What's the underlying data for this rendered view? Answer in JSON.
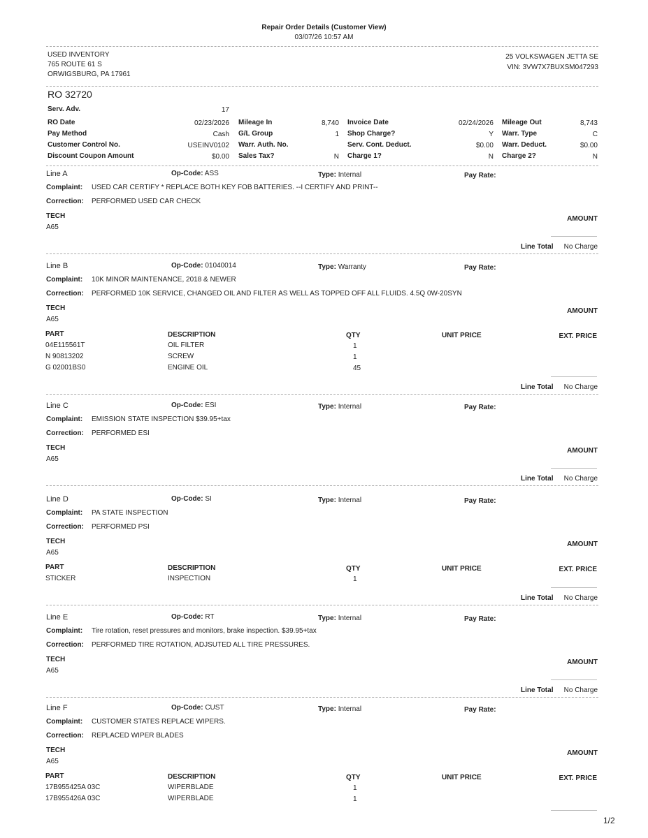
{
  "header": {
    "title": "Repair Order Details (Customer View)",
    "printed": "03/07/26 10:57 AM",
    "customer": [
      "USED INVENTORY",
      "765 ROUTE 61 S",
      "ORWIGSBURG, PA 17961"
    ],
    "vehicle": "25 VOLKSWAGEN JETTA SE",
    "vin": "VIN: 3VW7X7BUXSM047293",
    "ro_number": "RO 32720"
  },
  "fields": [
    [
      {
        "label": "Serv. Adv.",
        "value": "17"
      }
    ],
    [
      {
        "label": "RO Date",
        "value": "02/23/2026"
      },
      {
        "label": "Mileage In",
        "value": "8,740"
      },
      {
        "label": "Invoice Date",
        "value": "02/24/2026"
      },
      {
        "label": "Mileage Out",
        "value": "8,743"
      }
    ],
    [
      {
        "label": "Pay Method",
        "value": "Cash"
      },
      {
        "label": "G/L Group",
        "value": "1"
      },
      {
        "label": "Shop Charge?",
        "value": "Y"
      },
      {
        "label": "Warr. Type",
        "value": "C"
      }
    ],
    [
      {
        "label": "Customer Control No.",
        "value": "USEINV0102"
      },
      {
        "label": "Warr. Auth. No.",
        "value": ""
      },
      {
        "label": "Serv. Cont. Deduct.",
        "value": "$0.00"
      },
      {
        "label": "Warr. Deduct.",
        "value": "$0.00"
      }
    ],
    [
      {
        "label": "Discount Coupon Amount",
        "value": "$0.00"
      },
      {
        "label": "Sales Tax?",
        "value": "N"
      },
      {
        "label": "Charge 1?",
        "value": "N"
      },
      {
        "label": "Charge 2?",
        "value": "N"
      }
    ]
  ],
  "labels": {
    "opcode": "Op-Code:",
    "type": "Type:",
    "pay_rate": "Pay Rate:",
    "complaint": "Complaint:",
    "correction": "Correction:",
    "tech": "TECH",
    "amount": "AMOUNT",
    "line_total": "Line Total",
    "part": "PART",
    "description": "DESCRIPTION",
    "qty": "QTY",
    "unit_price": "UNIT PRICE",
    "ext_price": "EXT. PRICE"
  },
  "lines": [
    {
      "name": "Line A",
      "opcode": "ASS",
      "type": "Internal",
      "complaint": "USED CAR CERTIFY * REPLACE BOTH KEY FOB BATTERIES. --I CERTIFY AND PRINT--",
      "correction": "PERFORMED USED CAR CHECK",
      "tech": "A65",
      "parts": [],
      "total": "No Charge"
    },
    {
      "name": "Line B",
      "opcode": "01040014",
      "type": "Warranty",
      "complaint": "10K MINOR MAINTENANCE, 2018 & NEWER",
      "correction": "PERFORMED 10K SERVICE, CHANGED OIL AND FILTER AS WELL AS TOPPED OFF ALL FLUIDS. 4.5Q 0W-20SYN",
      "tech": "A65",
      "parts": [
        {
          "part": "04E115561T",
          "description": "OIL FILTER",
          "qty": "1"
        },
        {
          "part": "N 90813202",
          "description": "SCREW",
          "qty": "1"
        },
        {
          "part": "G 02001BS0",
          "description": "ENGINE OIL",
          "qty": "45"
        }
      ],
      "total": "No Charge"
    },
    {
      "name": "Line C",
      "opcode": "ESI",
      "type": "Internal",
      "complaint": "EMISSION STATE INSPECTION $39.95+tax",
      "correction": "PERFORMED ESI",
      "tech": "A65",
      "parts": [],
      "total": "No Charge"
    },
    {
      "name": "Line D",
      "opcode": "SI",
      "type": "Internal",
      "complaint": "PA STATE INSPECTION",
      "correction": "PERFORMED PSI",
      "tech": "A65",
      "parts": [
        {
          "part": "STICKER",
          "description": "INSPECTION",
          "qty": "1"
        }
      ],
      "total": "No Charge"
    },
    {
      "name": "Line E",
      "opcode": "RT",
      "type": "Internal",
      "complaint": "Tire rotation, reset pressures and monitors, brake inspection. $39.95+tax",
      "correction": "PERFORMED TIRE ROTATION, ADJSUTED ALL TIRE PRESSURES.",
      "tech": "A65",
      "parts": [],
      "total": "No Charge"
    },
    {
      "name": "Line F",
      "opcode": "CUST",
      "type": "Internal",
      "complaint": "CUSTOMER STATES REPLACE WIPERS.",
      "correction": "REPLACED WIPER BLADES",
      "tech": "A65",
      "parts": [
        {
          "part": "17B955425A 03C",
          "description": "WIPERBLADE",
          "qty": "1"
        },
        {
          "part": "17B955426A 03C",
          "description": "WIPERBLADE",
          "qty": "1"
        }
      ],
      "total": null
    }
  ],
  "page_number": "1/2"
}
